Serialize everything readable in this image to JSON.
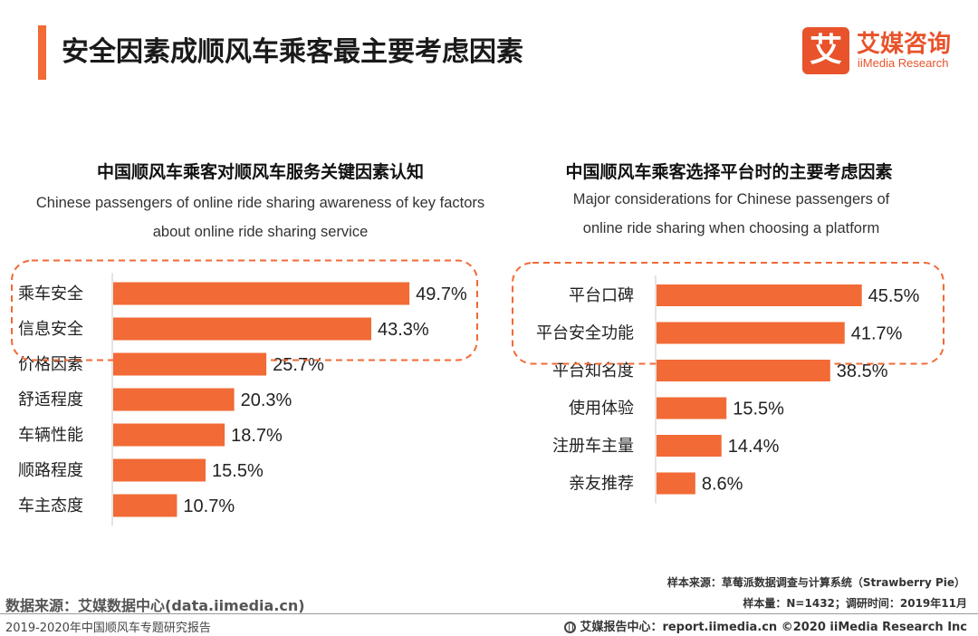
{
  "page": {
    "title": "安全因素成顺风车乘客最主要考虑因素",
    "accent_color": "#f26a35"
  },
  "logo": {
    "mark": "艾",
    "cn": "艾媒咨询",
    "en": "iiMedia Research",
    "color": "#e8532b"
  },
  "chart_data": [
    {
      "type": "bar",
      "orientation": "horizontal",
      "title": "中国顺风车乘客对顺风车服务关键因素认知",
      "subtitle_lines": [
        "Chinese passengers of online ride sharing awareness of key factors",
        "about  online ride sharing service"
      ],
      "categories": [
        "乘车安全",
        "信息安全",
        "价格因素",
        "舒适程度",
        "车辆性能",
        "顺路程度",
        "车主态度"
      ],
      "values": [
        49.7,
        43.3,
        25.7,
        20.3,
        18.7,
        15.5,
        10.7
      ],
      "value_labels": [
        "49.7%",
        "43.3%",
        "25.7%",
        "20.3%",
        "18.7%",
        "15.5%",
        "10.7%"
      ],
      "unit": "%",
      "xlim": [
        0,
        55
      ],
      "highlighted_top": 2,
      "bar_color": "#f26a35"
    },
    {
      "type": "bar",
      "orientation": "horizontal",
      "title": "中国顺风车乘客选择平台时的主要考虑因素",
      "subtitle_lines": [
        "Major considerations for Chinese passengers of",
        "online ride sharing  when choosing a platform"
      ],
      "categories": [
        "平台口碑",
        "平台安全功能",
        "平台知名度",
        "使用体验",
        "注册车主量",
        "亲友推荐"
      ],
      "values": [
        45.5,
        41.7,
        38.5,
        15.5,
        14.4,
        8.6
      ],
      "value_labels": [
        "45.5%",
        "41.7%",
        "38.5%",
        "15.5%",
        "14.4%",
        "8.6%"
      ],
      "unit": "%",
      "xlim": [
        0,
        55
      ],
      "highlighted_top": 2,
      "bar_color": "#f26a35"
    }
  ],
  "footer": {
    "sample_source": "样本来源：草莓派数据调查与计算系统（Strawberry Pie）",
    "sample_size": "样本量：N=1432；调研时间：2019年11月",
    "data_source": "数据来源：艾媒数据中心(data.iimedia.cn)",
    "report_name": "2019-2020年中国顺风车专题研究报告",
    "report_center": "艾媒报告中心：report.iimedia.cn  ©2020  iiMedia Research  Inc"
  }
}
